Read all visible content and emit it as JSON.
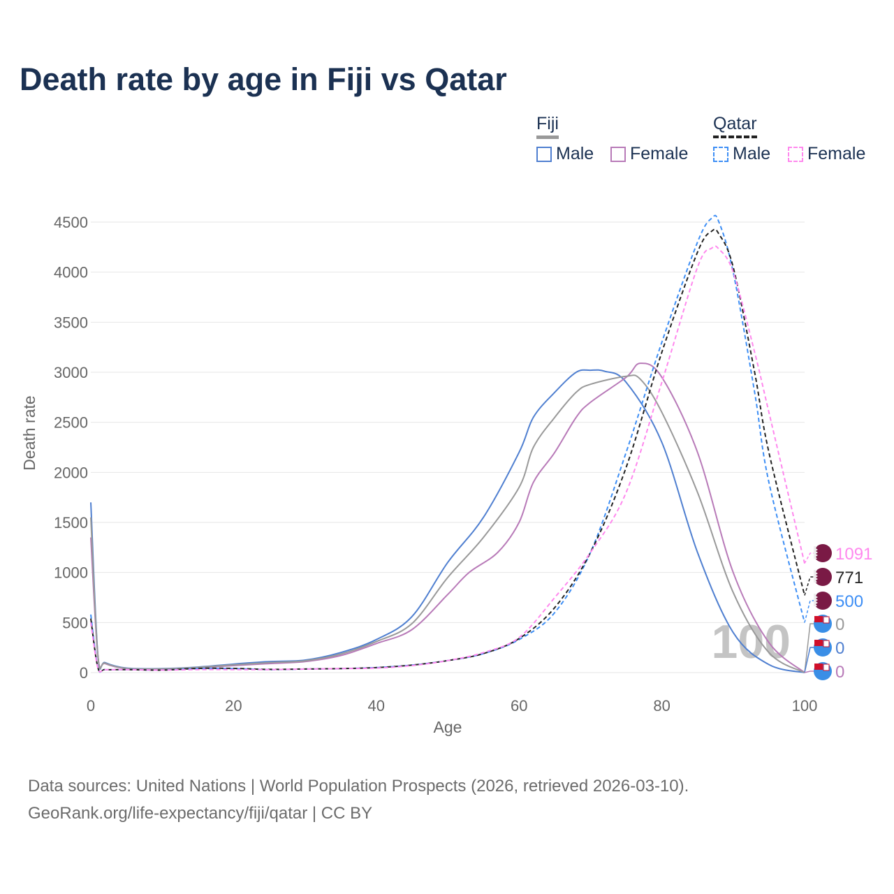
{
  "title": "Death rate by age in Fiji vs Qatar",
  "legend": {
    "groups": [
      {
        "name": "Fiji",
        "items": [
          "Male",
          "Female"
        ]
      },
      {
        "name": "Qatar",
        "items": [
          "Male",
          "Female"
        ]
      }
    ]
  },
  "source": {
    "line1": "Data sources: United Nations | World Population Prospects (2026, retrieved 2026-03-10).",
    "line2": "GeoRank.org/life-expectancy/fiji/qatar | CC BY"
  },
  "chart_data": {
    "type": "line",
    "xlabel": "Age",
    "ylabel": "Death rate",
    "xlim": [
      0,
      100
    ],
    "ylim": [
      0,
      4500
    ],
    "xticks": [
      0,
      20,
      40,
      60,
      80,
      100
    ],
    "yticks": [
      0,
      500,
      1000,
      1500,
      2000,
      2500,
      3000,
      3500,
      4000,
      4500
    ],
    "grid": true,
    "watermark": "100",
    "series": [
      {
        "name": "Fiji Male",
        "color": "#4f7fd0",
        "dash": false,
        "x": [
          0,
          1,
          2,
          5,
          10,
          15,
          20,
          25,
          30,
          35,
          40,
          45,
          50,
          55,
          60,
          62,
          65,
          68,
          70,
          72,
          75,
          80,
          85,
          90,
          95,
          100
        ],
        "y": [
          1700,
          170,
          100,
          45,
          40,
          55,
          85,
          110,
          125,
          200,
          330,
          560,
          1100,
          1550,
          2200,
          2550,
          2800,
          3000,
          3020,
          3010,
          2900,
          2300,
          1200,
          400,
          80,
          0
        ],
        "end_label": "0"
      },
      {
        "name": "Fiji Female",
        "color": "#b87ab8",
        "dash": false,
        "x": [
          0,
          1,
          2,
          5,
          10,
          15,
          20,
          25,
          30,
          35,
          40,
          45,
          50,
          53,
          57,
          60,
          62,
          65,
          68,
          70,
          75,
          77,
          80,
          85,
          90,
          95,
          100
        ],
        "y": [
          1350,
          160,
          90,
          40,
          35,
          50,
          70,
          90,
          110,
          170,
          290,
          430,
          780,
          1000,
          1200,
          1500,
          1900,
          2200,
          2550,
          2700,
          2950,
          3090,
          2950,
          2200,
          1000,
          300,
          0
        ],
        "end_label": "0"
      },
      {
        "name": "Fiji",
        "color": "#999999",
        "dash": false,
        "x": [
          0,
          1,
          2,
          5,
          10,
          15,
          20,
          25,
          30,
          35,
          40,
          45,
          50,
          55,
          60,
          62,
          65,
          68,
          70,
          75,
          77,
          80,
          85,
          90,
          95,
          100
        ],
        "y": [
          1550,
          165,
          95,
          42,
          37,
          52,
          78,
          100,
          118,
          185,
          310,
          490,
          950,
          1350,
          1850,
          2250,
          2550,
          2800,
          2880,
          2960,
          2930,
          2600,
          1800,
          800,
          200,
          0
        ],
        "end_label": "0"
      },
      {
        "name": "Qatar Male",
        "color": "#3d8ef5",
        "dash": true,
        "x": [
          0,
          1,
          2,
          5,
          10,
          15,
          20,
          25,
          30,
          35,
          40,
          45,
          50,
          55,
          60,
          65,
          70,
          75,
          80,
          85,
          87,
          88,
          90,
          93,
          95,
          100
        ],
        "y": [
          580,
          50,
          30,
          30,
          25,
          40,
          40,
          30,
          35,
          40,
          50,
          75,
          120,
          190,
          330,
          600,
          1200,
          2200,
          3300,
          4300,
          4540,
          4500,
          4000,
          2800,
          1900,
          500
        ],
        "end_label": "500"
      },
      {
        "name": "Qatar",
        "color": "#222222",
        "dash": true,
        "x": [
          0,
          1,
          2,
          5,
          10,
          15,
          20,
          25,
          30,
          35,
          40,
          45,
          50,
          55,
          60,
          65,
          70,
          75,
          80,
          85,
          87,
          88,
          90,
          93,
          95,
          100
        ],
        "y": [
          540,
          48,
          30,
          30,
          25,
          42,
          42,
          32,
          36,
          40,
          50,
          75,
          120,
          190,
          340,
          650,
          1200,
          2050,
          3200,
          4200,
          4410,
          4380,
          4050,
          3000,
          2200,
          771
        ],
        "end_label": "771"
      },
      {
        "name": "Qatar Female",
        "color": "#ff88ee",
        "dash": true,
        "x": [
          0,
          1,
          2,
          5,
          10,
          15,
          20,
          25,
          30,
          35,
          40,
          45,
          50,
          55,
          60,
          65,
          70,
          75,
          80,
          85,
          87,
          88,
          90,
          93,
          95,
          100
        ],
        "y": [
          500,
          45,
          30,
          30,
          25,
          30,
          30,
          30,
          35,
          40,
          45,
          70,
          120,
          200,
          350,
          750,
          1200,
          1800,
          2900,
          4050,
          4240,
          4230,
          4000,
          3200,
          2600,
          1091
        ],
        "end_label": "1091"
      }
    ]
  }
}
